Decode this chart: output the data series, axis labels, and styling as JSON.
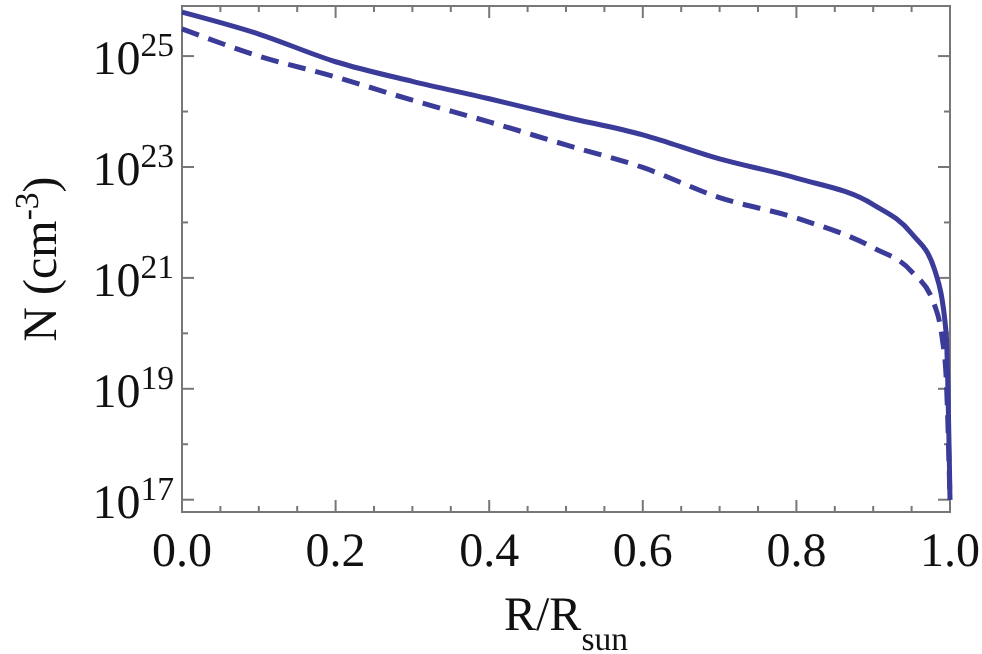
{
  "chart_data": {
    "type": "line",
    "xlabel": "R/R$_{sun}$",
    "ylabel": "N (cm$^{-3}$)",
    "log": "y",
    "xlim": [
      0,
      1
    ],
    "ylim": [
      6e+16,
      8e+25
    ],
    "xticks": [
      {
        "value": 0,
        "label": "0.0"
      },
      {
        "value": 0.05,
        "label": null
      },
      {
        "value": 0.2,
        "label": "0.2"
      },
      {
        "value": 0.1,
        "label": null
      },
      {
        "value": 0.15,
        "label": null
      },
      {
        "value": 0.25,
        "label": null
      },
      {
        "value": 0.3,
        "label": null
      },
      {
        "value": 0.35,
        "label": null
      },
      {
        "value": 0.4,
        "label": "0.4"
      },
      {
        "value": 0.45,
        "label": null
      },
      {
        "value": 0.5,
        "label": null
      },
      {
        "value": 0.55,
        "label": null
      },
      {
        "value": 0.6,
        "label": "0.6"
      },
      {
        "value": 0.65,
        "label": null
      },
      {
        "value": 0.7,
        "label": null
      },
      {
        "value": 0.75,
        "label": null
      },
      {
        "value": 0.8,
        "label": "0.8"
      },
      {
        "value": 0.85,
        "label": null
      },
      {
        "value": 0.9,
        "label": null
      },
      {
        "value": 0.95,
        "label": null
      },
      {
        "value": 1,
        "label": "1.0"
      }
    ],
    "yticks": [
      {
        "value": 1e+17,
        "label": "10$^{17}$"
      },
      {
        "value": 1e+18,
        "label": null
      },
      {
        "value": 1e+19,
        "label": "10$^{19}$"
      },
      {
        "value": 1e+20,
        "label": null
      },
      {
        "value": 1e+21,
        "label": "10$^{21}$"
      },
      {
        "value": 1e+22,
        "label": null
      },
      {
        "value": 1e+23,
        "label": "10$^{23}$"
      },
      {
        "value": 1e+24,
        "label": null
      },
      {
        "value": 1e+25,
        "label": "10$^{25}$"
      }
    ],
    "grid": false,
    "series": [
      {
        "color": "#3b3b9a",
        "line_style": "solid",
        "x": [
          0,
          0.1,
          0.2,
          0.3,
          0.4,
          0.5,
          0.6,
          0.7,
          0.8,
          0.9,
          0.95,
          0.98,
          0.995,
          1.0
        ],
        "values": [
          6.2e+25,
          2.5e+25,
          7.9e+24,
          3.5e+24,
          1.7e+24,
          7.9e+23,
          3.8e+23,
          1.4e+23,
          6.3e+22,
          2.1e+22,
          6.3e+21,
          1.4e+21,
          1e+20,
          1e+17
        ]
      },
      {
        "color": "#3b3b9a",
        "line_style": "dashed",
        "x": [
          0,
          0.1,
          0.2,
          0.3,
          0.4,
          0.5,
          0.6,
          0.7,
          0.8,
          0.9,
          0.95,
          0.98,
          0.99,
          0.995,
          1.0
        ],
        "values": [
          3.1e+25,
          1e+25,
          4.2e+24,
          1.6e+24,
          6.5e+23,
          2.5e+23,
          9.8e+22,
          2.8e+22,
          1.2e+22,
          3.5e+21,
          1.3e+21,
          3.2e+20,
          7.9e+19,
          1.6e+19,
          1e+17
        ]
      }
    ]
  }
}
